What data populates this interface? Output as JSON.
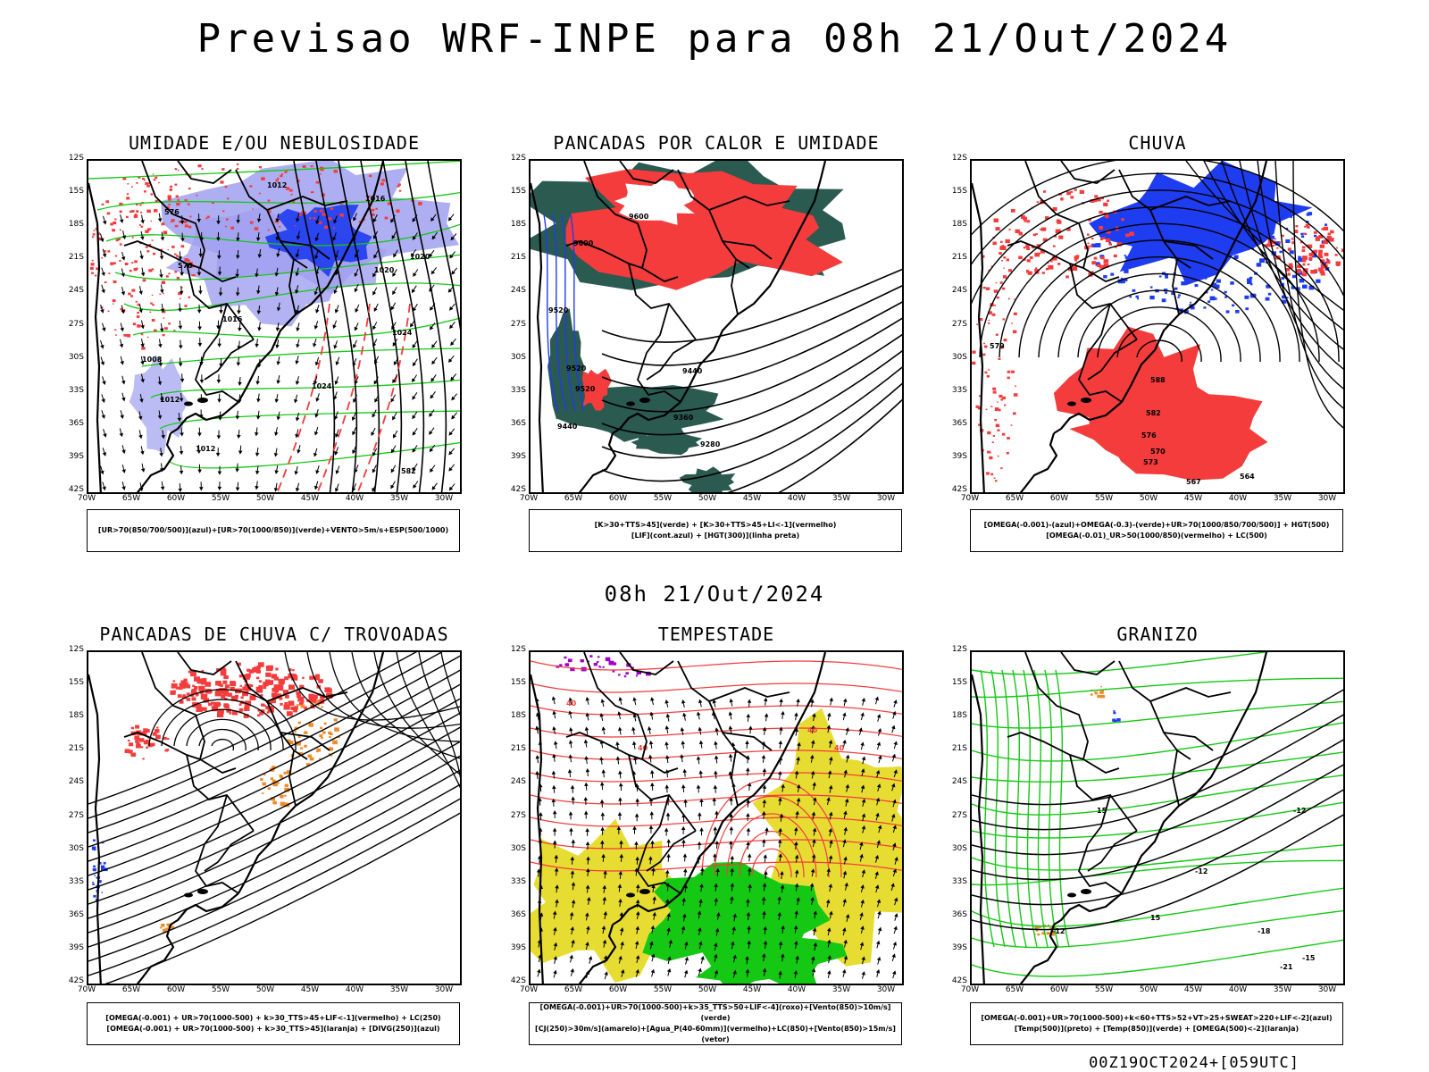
{
  "title": "Previsao WRF-INPE  para 08h 21/Out/2024",
  "mid_date": "08h 21/Out/2024",
  "footer": "00Z19OCT2024+[059UTC]",
  "axes": {
    "y": [
      "12S",
      "15S",
      "18S",
      "21S",
      "24S",
      "27S",
      "30S",
      "33S",
      "36S",
      "39S",
      "42S"
    ],
    "x": [
      "70W",
      "65W",
      "60W",
      "55W",
      "50W",
      "45W",
      "40W",
      "35W",
      "30W"
    ]
  },
  "colors": {
    "red": "#f43c3c",
    "blue": "#1e3cf0",
    "lavender": "#a0a0f0",
    "green": "#14c814",
    "darkgreen": "#2a5a50",
    "yellow": "#e6dc32",
    "orange": "#f08c28",
    "purple": "#a000c8"
  },
  "panels": [
    {
      "title": "UMIDADE E/OU NEBULOSIDADE",
      "legend": [
        "[UR>70(850/700/500)](azul)+[UR>70(1000/850)](verde)+VENTO>5m/s+ESP(500/1000)"
      ],
      "contour_labels": [
        "1012",
        "1016",
        "1016",
        "1020",
        "1020",
        "1024",
        "1024",
        "1008",
        "1012",
        "1012",
        "576",
        "570",
        "582"
      ]
    },
    {
      "title": "PANCADAS POR CALOR E UMIDADE",
      "legend": [
        "[K>30+TTS>45](verde) + [K>30+TTS>45+LI<-1](vermelho)",
        "[LIF](cont.azul) + [HGT(300)](linha preta)"
      ],
      "contour_labels": [
        "9600",
        "9600",
        "9520",
        "9520",
        "9440",
        "9360",
        "9280",
        "9440",
        "9520"
      ]
    },
    {
      "title": "CHUVA",
      "legend": [
        "[OMEGA(-0.001)-(azul)+OMEGA(-0.3)-(verde)+UR>70(1000/850/700/500)] + HGT(500)",
        "[OMEGA(-0.01)_UR>50(1000/850)(vermelho) + LC(500)"
      ],
      "contour_labels": [
        "588",
        "582",
        "576",
        "570",
        "573",
        "567",
        "564",
        "579"
      ]
    },
    {
      "title": "PANCADAS DE CHUVA C/ TROVOADAS",
      "legend": [
        "[OMEGA(-0.001) + UR>70(1000-500) + k>30_TTS>45+LIF<-1](vermelho) + LC(250)",
        "[OMEGA(-0.001) + UR>70(1000-500) + k>30_TTS>45](laranja) + [DIVG(250)](azul)"
      ],
      "contour_labels": []
    },
    {
      "title": "TEMPESTADE",
      "legend": [
        "[OMEGA(-0.001)+UR>70(1000-500)+k>35_TTS>50+LIF<-4](roxo)+[Vento(850)>10m/s](verde)",
        "[CJ(250)>30m/s](amarelo)+[Agua_P(40-60mm)](vermelho)+LC(850)+[Vento(850)>15m/s](vetor)"
      ],
      "contour_labels": [
        "40",
        "40",
        "40",
        "40"
      ]
    },
    {
      "title": "GRANIZO",
      "legend": [
        "[OMEGA(-0.001)+UR>70(1000-500)+k<60+TTS>52+VT>25+SWEAT>220+LIF<-2](azul)",
        "[Temp(500)](preto) + [Temp(850)](verde) + [OMEGA(500)<-2](laranja)"
      ],
      "contour_labels": [
        "-12",
        "-12",
        "-15",
        "-18",
        "-21",
        "-12",
        "15",
        "15"
      ]
    }
  ]
}
